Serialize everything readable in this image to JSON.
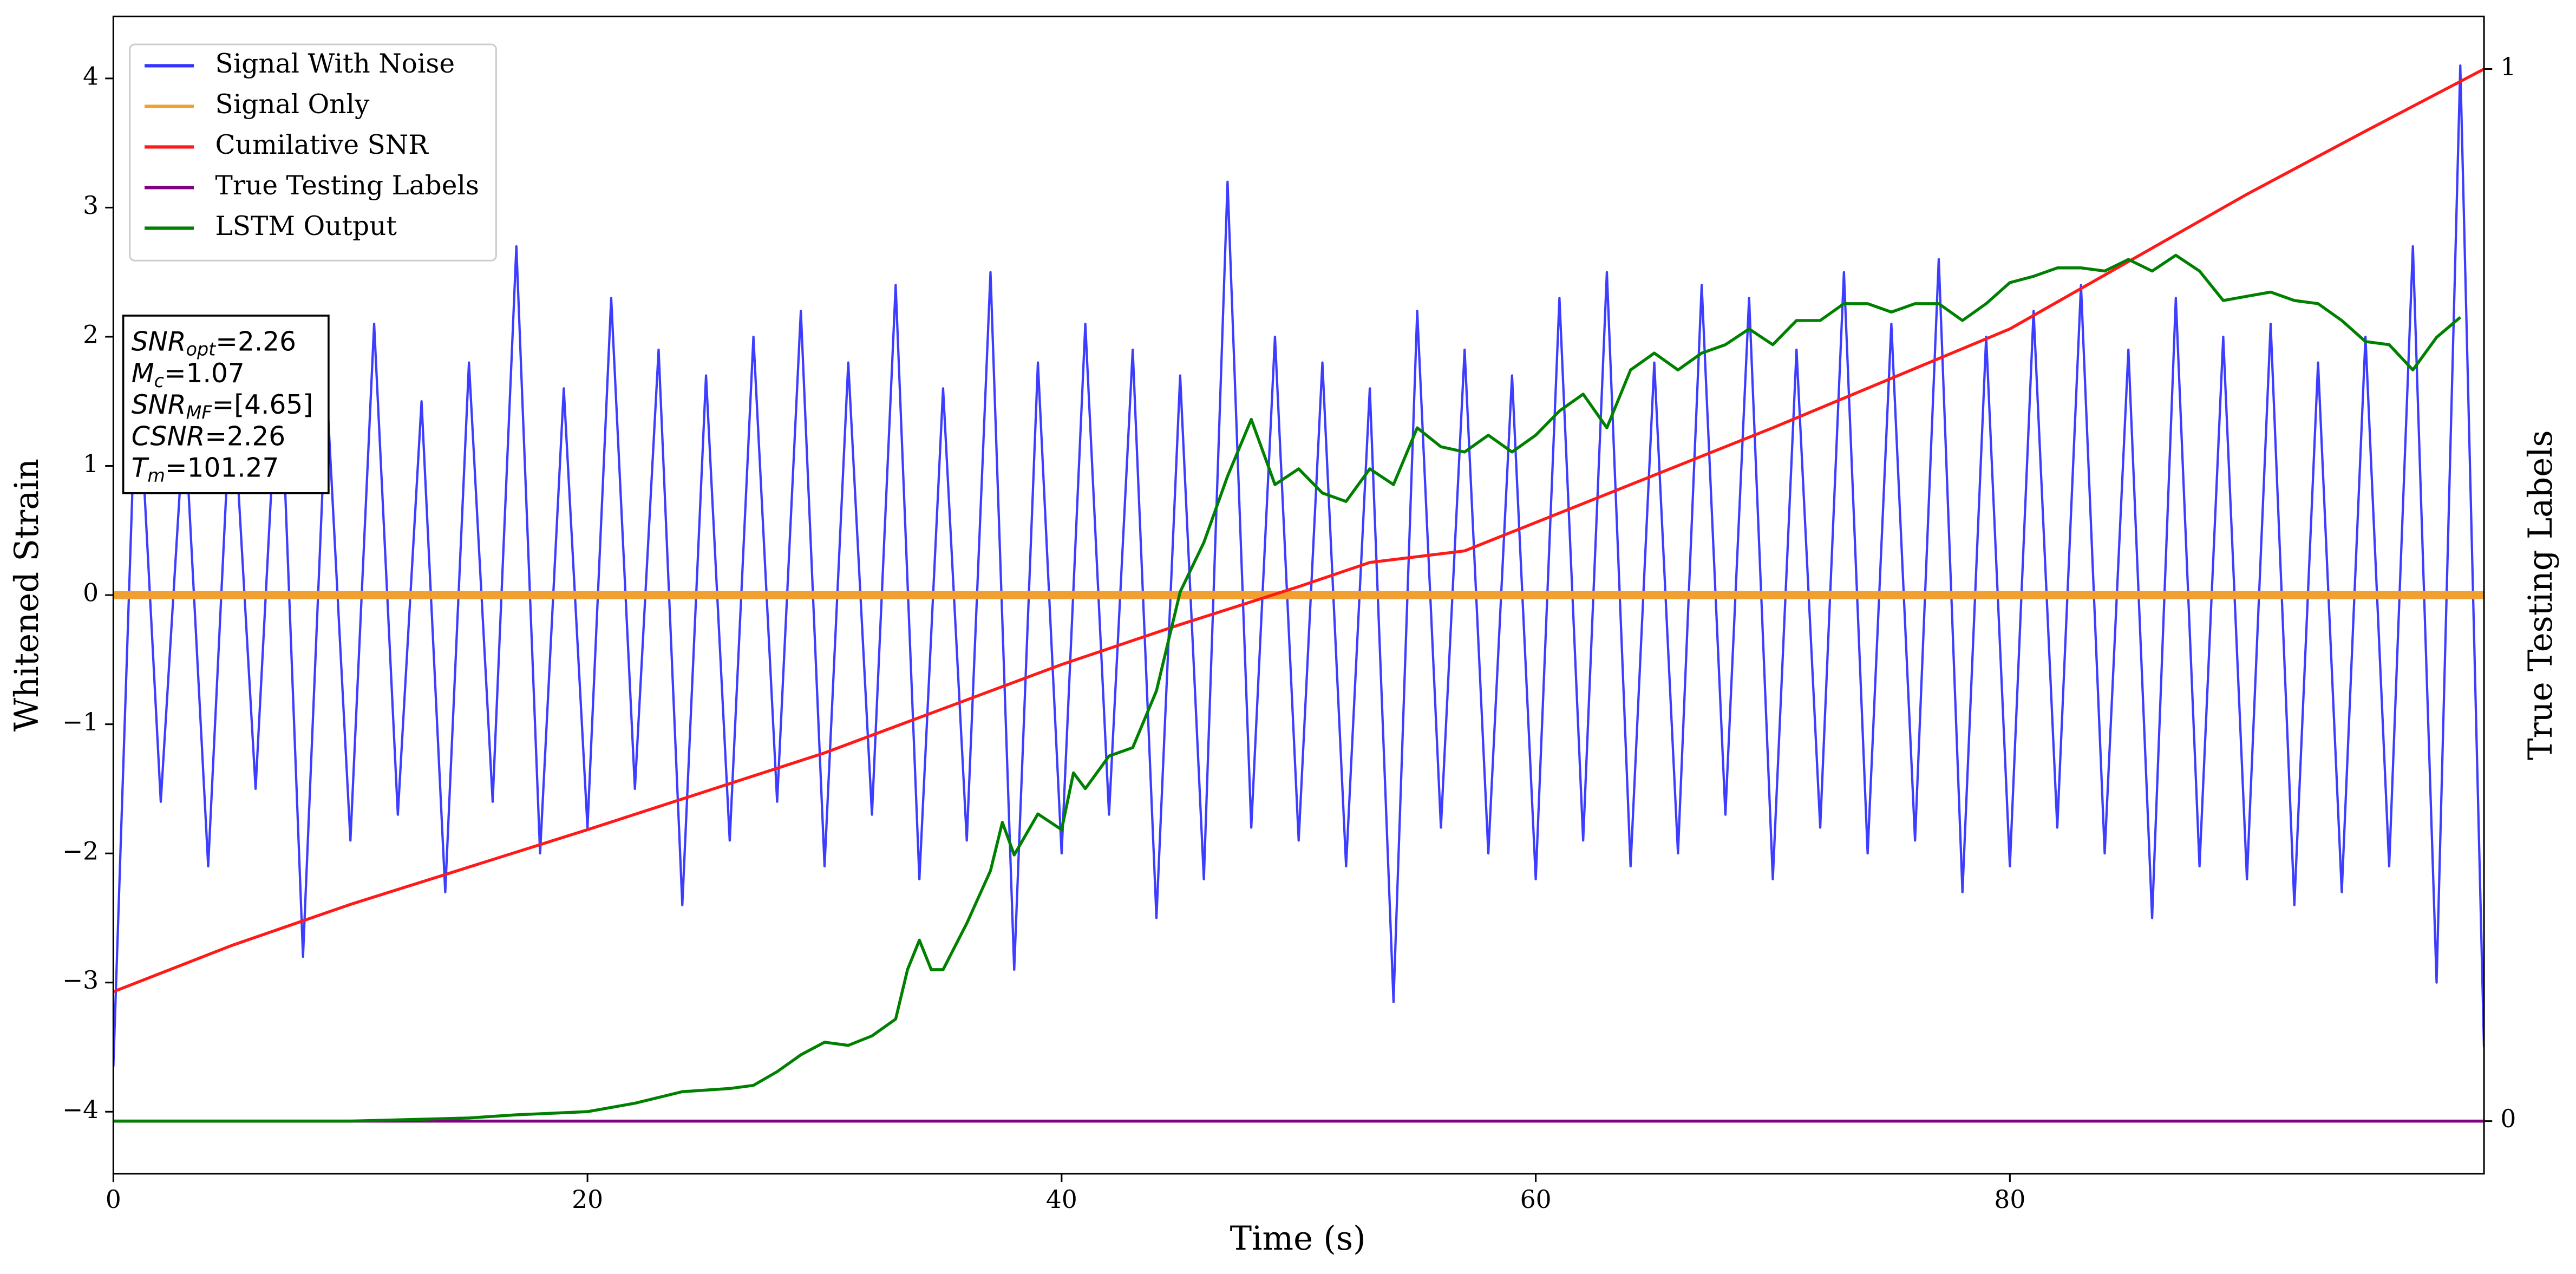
{
  "chart_data": {
    "type": "line",
    "xlabel": "Time (s)",
    "ylabel": "Whitened Strain",
    "y2label": "True Testing Labels",
    "xlim": [
      0,
      100
    ],
    "xticks": [
      0,
      20,
      40,
      60,
      80
    ],
    "ylim": [
      -4.48,
      4.48
    ],
    "yticks": [
      {
        "value": -4,
        "label": "−4"
      },
      {
        "value": -3,
        "label": "−3"
      },
      {
        "value": -2,
        "label": "−2"
      },
      {
        "value": -1,
        "label": "−1"
      },
      0,
      1,
      2,
      3,
      4
    ],
    "y2lim": [
      -0.05,
      1.05
    ],
    "y2ticks": [
      0,
      1
    ],
    "legend": "upper left",
    "series": [
      {
        "name": "Signal With Noise",
        "color": "#3333ff",
        "x": [
          0,
          1,
          2,
          3,
          4,
          5,
          6,
          7,
          8,
          9,
          10,
          11,
          12,
          13,
          14,
          15,
          16,
          17,
          18,
          19,
          20,
          21,
          22,
          23,
          24,
          25,
          26,
          27,
          28,
          29,
          30,
          31,
          32,
          33,
          34,
          35,
          36,
          37,
          38,
          39,
          40,
          41,
          42,
          43,
          44,
          45,
          46,
          47,
          48,
          49,
          50,
          51,
          52,
          53,
          54,
          55,
          56,
          57,
          58,
          59,
          60,
          61,
          62,
          63,
          64,
          65,
          66,
          67,
          68,
          69,
          70,
          71,
          72,
          73,
          74,
          75,
          76,
          77,
          78,
          79,
          80,
          81,
          82,
          83,
          84,
          85,
          86,
          87,
          88,
          89,
          90,
          91,
          92,
          93,
          94,
          95,
          96,
          97,
          98,
          99,
          100
        ],
        "values": [
          -3.65,
          1.9,
          -1.6,
          1.4,
          -2.1,
          1.7,
          -1.5,
          2.0,
          -2.8,
          1.6,
          -1.9,
          2.1,
          -1.7,
          1.5,
          -2.3,
          1.8,
          -1.6,
          2.7,
          -2.0,
          1.6,
          -1.8,
          2.3,
          -1.5,
          1.9,
          -2.4,
          1.7,
          -1.9,
          2.0,
          -1.6,
          2.2,
          -2.1,
          1.8,
          -1.7,
          2.4,
          -2.2,
          1.6,
          -1.9,
          2.5,
          -2.9,
          1.8,
          -2.0,
          2.1,
          -1.7,
          1.9,
          -2.5,
          1.7,
          -2.2,
          3.2,
          -1.8,
          2.0,
          -1.9,
          1.8,
          -2.1,
          1.6,
          -3.15,
          2.2,
          -1.8,
          1.9,
          -2.0,
          1.7,
          -2.2,
          2.3,
          -1.9,
          2.5,
          -2.1,
          1.8,
          -2.0,
          2.4,
          -1.7,
          2.3,
          -2.2,
          1.9,
          -1.8,
          2.5,
          -2.0,
          2.1,
          -1.9,
          2.6,
          -2.3,
          2.0,
          -2.1,
          2.2,
          -1.8,
          2.4,
          -2.0,
          1.9,
          -2.5,
          2.3,
          -2.1,
          2.0,
          -2.2,
          2.1,
          -2.4,
          1.8,
          -2.3,
          2.0,
          -2.1,
          2.7,
          -3.0,
          4.1,
          -3.5
        ]
      },
      {
        "name": "Signal Only",
        "color": "#f0a030",
        "x": [
          0,
          25,
          50,
          75,
          100
        ],
        "values": [
          0,
          0,
          0,
          0,
          0
        ]
      },
      {
        "name": "Cumilative SNR",
        "color": "#ff1a1a",
        "axis": "y2",
        "x": [
          0,
          5,
          10,
          20,
          30,
          40,
          45,
          50,
          53,
          57,
          60,
          70,
          80,
          90,
          95,
          100
        ],
        "values": [
          0.123,
          0.167,
          0.206,
          0.277,
          0.35,
          0.434,
          0.472,
          0.508,
          0.531,
          0.542,
          0.569,
          0.659,
          0.753,
          0.881,
          0.941,
          1.0
        ]
      },
      {
        "name": "True Testing Labels",
        "color": "#800080",
        "axis": "y2",
        "x": [
          0,
          100
        ],
        "values": [
          0,
          0
        ]
      },
      {
        "name": "LSTM Output",
        "color": "#008000",
        "axis": "y2",
        "x": [
          0,
          10,
          15,
          17,
          20,
          22,
          24,
          26,
          27,
          28,
          29,
          30,
          31,
          32,
          33,
          33.5,
          34,
          34.5,
          35,
          36,
          37,
          37.5,
          38,
          39,
          40,
          40.5,
          41,
          42,
          43,
          44,
          45,
          46,
          47,
          48,
          49,
          50,
          51,
          52,
          53,
          54,
          55,
          56,
          57,
          58,
          59,
          60,
          61,
          62,
          63,
          64,
          65,
          66,
          67,
          68,
          69,
          70,
          71,
          72,
          73,
          74,
          75,
          76,
          77,
          78,
          79,
          80,
          81,
          82,
          83,
          84,
          85,
          86,
          87,
          88,
          89,
          90,
          91,
          92,
          93,
          94,
          95,
          96,
          97,
          98,
          99
        ],
        "values": [
          0,
          0,
          0.003,
          0.006,
          0.009,
          0.017,
          0.028,
          0.031,
          0.034,
          0.047,
          0.063,
          0.075,
          0.072,
          0.081,
          0.097,
          0.144,
          0.172,
          0.144,
          0.144,
          0.188,
          0.238,
          0.284,
          0.253,
          0.292,
          0.277,
          0.331,
          0.316,
          0.347,
          0.355,
          0.409,
          0.503,
          0.55,
          0.613,
          0.667,
          0.605,
          0.62,
          0.597,
          0.589,
          0.62,
          0.605,
          0.659,
          0.641,
          0.636,
          0.652,
          0.636,
          0.652,
          0.675,
          0.691,
          0.659,
          0.714,
          0.73,
          0.714,
          0.73,
          0.738,
          0.753,
          0.738,
          0.761,
          0.761,
          0.777,
          0.777,
          0.769,
          0.777,
          0.777,
          0.761,
          0.777,
          0.797,
          0.803,
          0.811,
          0.811,
          0.808,
          0.819,
          0.808,
          0.823,
          0.808,
          0.78,
          0.784,
          0.788,
          0.78,
          0.777,
          0.761,
          0.741,
          0.738,
          0.714,
          0.745,
          0.764
        ]
      }
    ],
    "annotation": [
      {
        "base": "SNR",
        "sub": "opt",
        "text": "=2.26"
      },
      {
        "base": "M",
        "sub": "c",
        "text": "=1.07"
      },
      {
        "base": "SNR",
        "sub": "MF",
        "text": "=[4.65]"
      },
      {
        "base": "CSNR",
        "text": "=2.26"
      },
      {
        "base": "T",
        "sub": "m",
        "text": "=101.27"
      }
    ]
  }
}
